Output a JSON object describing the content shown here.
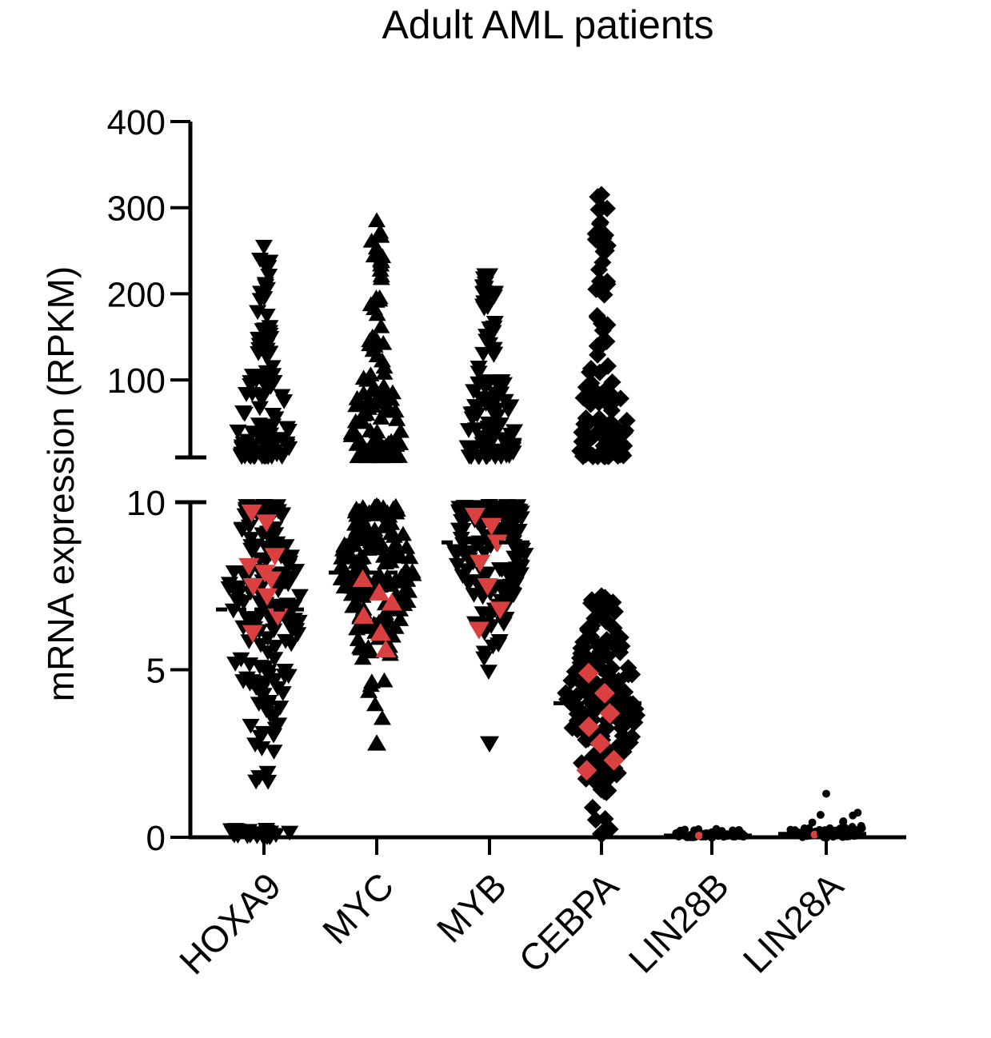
{
  "chart_data": {
    "type": "scatter",
    "title": "Adult AML patients",
    "ylabel": "mRNA expression (RPKM)",
    "xlabel": "",
    "categories": [
      "HOXA9",
      "MYC",
      "MYB",
      "CEBPA",
      "LIN28B",
      "LIN28A"
    ],
    "y_axis_segments": [
      {
        "range": [
          0,
          10
        ],
        "ticks": [
          0,
          5,
          10
        ],
        "tick_labels": [
          "0",
          "5",
          "10"
        ]
      },
      {
        "range": [
          10,
          400
        ],
        "ticks": [
          100,
          200,
          300,
          400
        ],
        "tick_labels": [
          "100",
          "200",
          "300",
          "400"
        ]
      }
    ],
    "axis_break": [
      10,
      10
    ],
    "grid": false,
    "legend": "none",
    "colors": {
      "points": "#000000",
      "highlight": "#d9403f",
      "median": "#000000"
    },
    "series": [
      {
        "category": "HOXA9",
        "marker": "triangle-down",
        "median": 6.8,
        "low_range": {
          "min": 0,
          "max": 9.9
        },
        "high_range": {
          "min": 11,
          "max": 255
        },
        "cluster_near_zero": true,
        "highlight_points": [
          9.7,
          9.4,
          8.4,
          8.1,
          7.9,
          7.7,
          7.5,
          7.2,
          6.6,
          6.1
        ]
      },
      {
        "category": "MYC",
        "marker": "triangle-up",
        "median": 7.9,
        "low_range": {
          "min": 2.8,
          "max": 9.9
        },
        "high_range": {
          "min": 11,
          "max": 285
        },
        "cluster_near_zero": false,
        "highlight_points": [
          7.7,
          7.3,
          7.0,
          6.6,
          6.1,
          5.6
        ]
      },
      {
        "category": "MYB",
        "marker": "triangle-down",
        "median": 8.8,
        "low_range": {
          "min": 2.8,
          "max": 9.9
        },
        "high_range": {
          "min": 11,
          "max": 222
        },
        "cluster_near_zero": false,
        "highlight_points": [
          9.6,
          9.3,
          8.8,
          8.2,
          7.5,
          6.8,
          6.2
        ]
      },
      {
        "category": "CEBPA",
        "marker": "diamond",
        "median": 4.0,
        "low_range": {
          "min": 0.1,
          "max": 7.2
        },
        "high_range": {
          "min": 11,
          "max": 315
        },
        "cluster_near_zero": false,
        "highlight_points": [
          4.9,
          4.3,
          3.7,
          3.3,
          2.8,
          2.3,
          2.0
        ]
      },
      {
        "category": "LIN28B",
        "marker": "circle",
        "median": 0.05,
        "low_range": {
          "min": 0,
          "max": 0.15
        },
        "high_range": null,
        "cluster_near_zero": true,
        "highlight_points": [
          0.05
        ]
      },
      {
        "category": "LIN28A",
        "marker": "circle",
        "median": 0.1,
        "low_range": {
          "min": 0,
          "max": 1.3
        },
        "high_range": null,
        "cluster_near_zero": true,
        "highlight_points": [
          0.08
        ]
      }
    ]
  }
}
